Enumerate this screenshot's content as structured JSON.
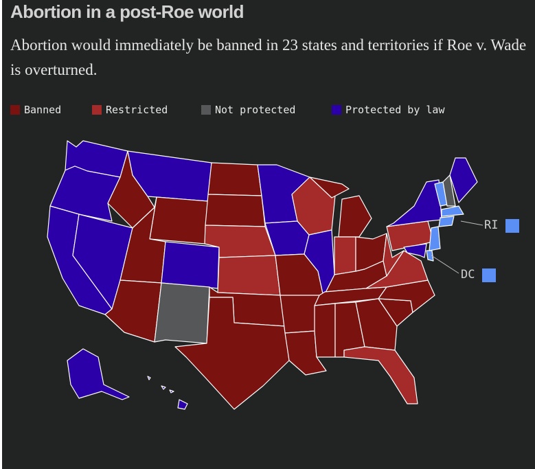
{
  "header": {
    "title": "Abortion in a post-Roe world",
    "subtitle": "Abortion would immediately be banned in 23 states and territories if Roe v. Wade is overturned."
  },
  "legend": [
    {
      "key": "banned",
      "label": "Banned",
      "color": "#7a1210"
    },
    {
      "key": "restricted",
      "label": "Restricted",
      "color": "#a52a2a"
    },
    {
      "key": "not_protected",
      "label": "Not protected",
      "color": "#555758"
    },
    {
      "key": "protected",
      "label": "Protected by law",
      "color": "#2b00a8"
    }
  ],
  "colors": {
    "background": "#222323",
    "banned": "#7a1210",
    "restricted": "#a52a2a",
    "not_protected": "#555758",
    "protected": "#2b00a8",
    "small_state_highlight": "#5b8ff5"
  },
  "callouts": [
    {
      "label": "RI",
      "color": "#5b8ff5"
    },
    {
      "label": "DC",
      "color": "#5b8ff5"
    }
  ],
  "states": {
    "WA": "protected",
    "OR": "protected",
    "CA": "protected",
    "NV": "protected",
    "ID": "banned",
    "MT": "protected",
    "WY": "banned",
    "UT": "banned",
    "AZ": "banned",
    "CO": "protected",
    "NM": "not_protected",
    "ND": "banned",
    "SD": "banned",
    "NE": "restricted",
    "KS": "restricted",
    "OK": "banned",
    "TX": "banned",
    "MN": "protected",
    "IA": "protected",
    "MO": "banned",
    "AR": "banned",
    "LA": "banned",
    "WI": "restricted",
    "IL": "protected",
    "MI": "banned",
    "IN": "restricted",
    "OH": "banned",
    "KY": "banned",
    "TN": "banned",
    "MS": "banned",
    "AL": "banned",
    "GA": "banned",
    "FL": "restricted",
    "SC": "banned",
    "NC": "banned",
    "VA": "restricted",
    "WV": "restricted",
    "PA": "restricted",
    "NY": "protected",
    "VT": "small",
    "NH": "not_protected",
    "ME": "protected",
    "MA": "small",
    "CT": "small",
    "NJ": "small",
    "DE": "small",
    "MD": "protected",
    "AK": "protected",
    "HI": "protected"
  }
}
